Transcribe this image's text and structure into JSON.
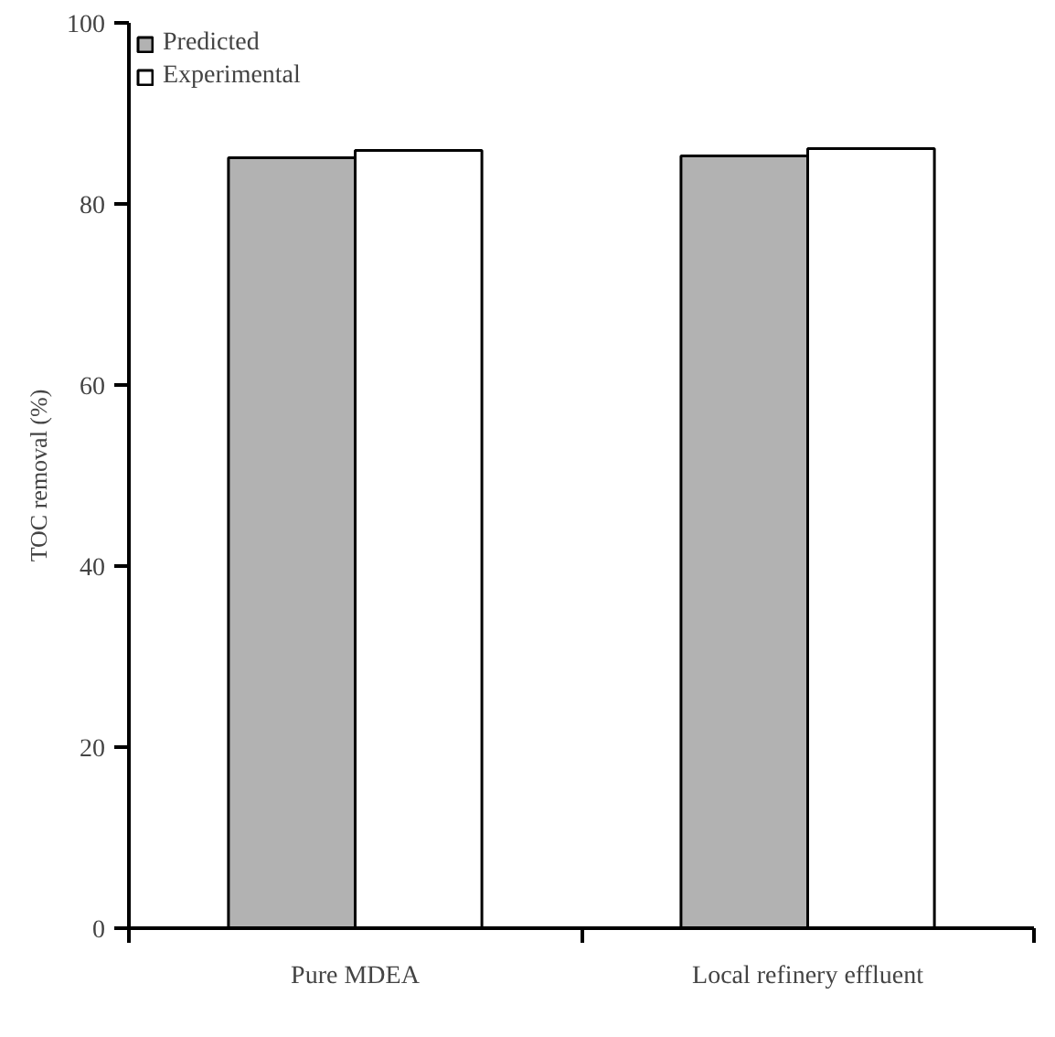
{
  "chart_data": {
    "type": "bar",
    "ylabel": "TOC removal (%)",
    "categories": [
      "Pure MDEA",
      "Local refinery effluent"
    ],
    "series": [
      {
        "name": "Predicted",
        "color": "#b2b2b2",
        "values": [
          85.1,
          85.3
        ]
      },
      {
        "name": "Experimental",
        "color": "#ffffff",
        "values": [
          85.9,
          86.1
        ]
      }
    ],
    "ylim": [
      0,
      100
    ],
    "yticks": [
      0,
      20,
      40,
      60,
      80,
      100
    ],
    "grid": false,
    "legend": "top left"
  }
}
